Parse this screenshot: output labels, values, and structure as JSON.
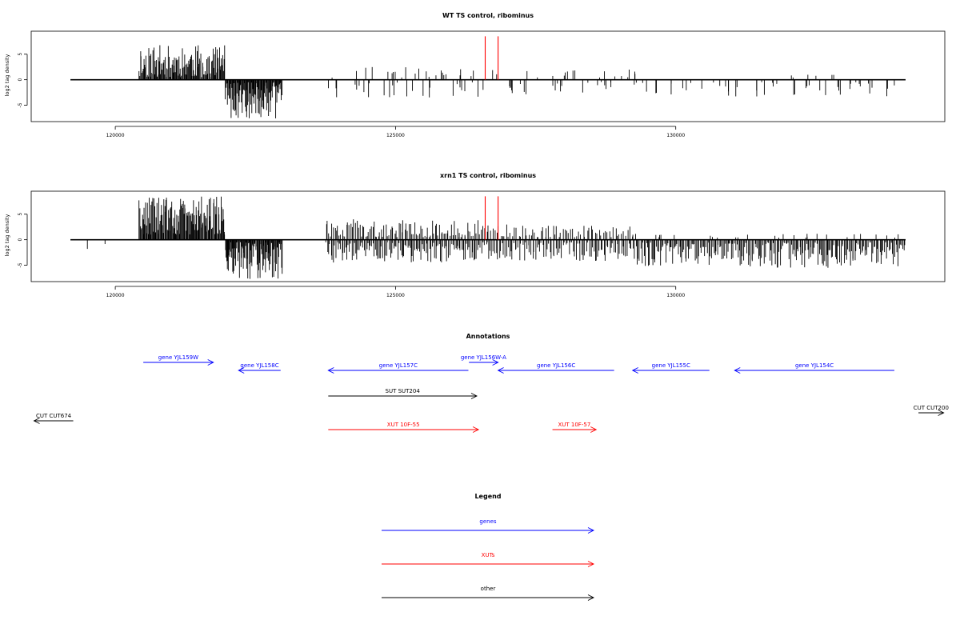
{
  "chart_data": [
    {
      "type": "bar",
      "title": "WT TS control, ribominus",
      "ylabel": "log2 tag density",
      "xlabel": "",
      "xlim": [
        118500,
        134800
      ],
      "ylim": [
        -8.2,
        9.5
      ],
      "xticks": [
        120000,
        125000,
        130000
      ],
      "xtick_labels": [
        "120000",
        "125000",
        "130000"
      ],
      "yticks": [
        -5,
        0,
        5
      ],
      "ytick_labels": [
        "-5",
        "0",
        "5"
      ],
      "grid": false,
      "baseline": {
        "start": 119200,
        "end": 134100
      },
      "highlight_color": "#ff0000",
      "highlights": [
        126600,
        126830
      ],
      "highlight_height": 8.5,
      "segments": [
        {
          "start": 120420,
          "end": 121960,
          "dir": 1,
          "density": 115,
          "min": 0.5,
          "max": 6.8,
          "isolated": false
        },
        {
          "start": 121960,
          "end": 122980,
          "dir": -1,
          "density": 140,
          "min": 0.5,
          "max": 7.6,
          "isolated": false
        },
        {
          "start": 123750,
          "end": 126500,
          "dir": 1,
          "density": 12,
          "min": 0.4,
          "max": 2.6,
          "isolated": true
        },
        {
          "start": 123750,
          "end": 126500,
          "dir": -1,
          "density": 14,
          "min": 0.4,
          "max": 3.5,
          "isolated": true
        },
        {
          "start": 126500,
          "end": 129300,
          "dir": 1,
          "density": 9,
          "min": 0.4,
          "max": 2.0,
          "isolated": true
        },
        {
          "start": 126500,
          "end": 129300,
          "dir": -1,
          "density": 12,
          "min": 0.4,
          "max": 3.0,
          "isolated": true
        },
        {
          "start": 129300,
          "end": 133900,
          "dir": 1,
          "density": 2,
          "min": 0.4,
          "max": 1.0,
          "isolated": true
        },
        {
          "start": 129300,
          "end": 133900,
          "dir": -1,
          "density": 14,
          "min": 0.4,
          "max": 3.6,
          "isolated": true
        }
      ]
    },
    {
      "type": "bar",
      "title": "xrn1 TS control, ribominus",
      "ylabel": "log2 tag density",
      "xlabel": "",
      "xlim": [
        118500,
        134800
      ],
      "ylim": [
        -8.2,
        9.5
      ],
      "xticks": [
        120000,
        125000,
        130000
      ],
      "xtick_labels": [
        "120000",
        "125000",
        "130000"
      ],
      "yticks": [
        -5,
        0,
        5
      ],
      "ytick_labels": [
        "-5",
        "0",
        "5"
      ],
      "grid": false,
      "baseline": {
        "start": 119200,
        "end": 134100
      },
      "highlight_color": "#ff0000",
      "highlights": [
        126600,
        126830
      ],
      "highlight_height": 8.5,
      "segments": [
        {
          "start": 120420,
          "end": 121960,
          "dir": 1,
          "density": 125,
          "min": 1.0,
          "max": 8.6,
          "isolated": false
        },
        {
          "start": 121960,
          "end": 122980,
          "dir": -1,
          "density": 140,
          "min": 0.5,
          "max": 7.8,
          "isolated": false
        },
        {
          "start": 123750,
          "end": 126500,
          "dir": 1,
          "density": 55,
          "min": 0.5,
          "max": 4.0,
          "isolated": false
        },
        {
          "start": 123750,
          "end": 126500,
          "dir": -1,
          "density": 65,
          "min": 0.5,
          "max": 4.5,
          "isolated": false
        },
        {
          "start": 126500,
          "end": 129300,
          "dir": 1,
          "density": 40,
          "min": 0.5,
          "max": 3.0,
          "isolated": false
        },
        {
          "start": 126500,
          "end": 129300,
          "dir": -1,
          "density": 55,
          "min": 0.5,
          "max": 4.2,
          "isolated": false
        },
        {
          "start": 129300,
          "end": 134100,
          "dir": -1,
          "density": 70,
          "min": 0.5,
          "max": 5.5,
          "isolated": false
        },
        {
          "start": 129300,
          "end": 134100,
          "dir": 1,
          "density": 8,
          "min": 0.4,
          "max": 1.2,
          "isolated": true
        },
        {
          "start": 119200,
          "end": 120300,
          "dir": -1,
          "density": 3,
          "min": 0.6,
          "max": 2.4,
          "isolated": true
        }
      ]
    }
  ],
  "annotations": {
    "title": "Annotations",
    "features": [
      {
        "label": "gene YJL159W",
        "color": "#0000ff",
        "start": 120500,
        "end": 121750,
        "strand": "+"
      },
      {
        "label": "gene YJL158C",
        "color": "#0000ff",
        "start": 122200,
        "end": 122950,
        "strand": "-"
      },
      {
        "label": "gene YJL157C",
        "color": "#0000ff",
        "start": 123800,
        "end": 126300,
        "strand": "-"
      },
      {
        "label": "gene YJL156W-A",
        "color": "#0000ff",
        "start": 126310,
        "end": 126830,
        "strand": "+"
      },
      {
        "label": "gene YJL156C",
        "color": "#0000ff",
        "start": 126830,
        "end": 128900,
        "strand": "-"
      },
      {
        "label": "gene YJL155C",
        "color": "#0000ff",
        "start": 129230,
        "end": 130600,
        "strand": "-"
      },
      {
        "label": "gene YJL154C",
        "color": "#0000ff",
        "start": 131050,
        "end": 133900,
        "strand": "-"
      },
      {
        "label": "SUT SUT204",
        "color": "#000000",
        "start": 123800,
        "end": 126450,
        "strand": "+"
      },
      {
        "label": "XUT 10F-55",
        "color": "#ff0000",
        "start": 123800,
        "end": 126480,
        "strand": "+"
      },
      {
        "label": "XUT 10F-57",
        "color": "#ff0000",
        "start": 127800,
        "end": 128580,
        "strand": "+"
      },
      {
        "label": "CUT CUT674",
        "color": "#000000",
        "start": 118550,
        "end": 119250,
        "strand": "-"
      },
      {
        "label": "CUT CUT200",
        "color": "#000000",
        "start": 134330,
        "end": 134780,
        "strand": "+"
      }
    ]
  },
  "legend": {
    "title": "Legend",
    "items": [
      {
        "label": "genes",
        "color": "#0000ff"
      },
      {
        "label": "XUTs",
        "color": "#ff0000"
      },
      {
        "label": "other",
        "color": "#000000"
      }
    ]
  }
}
